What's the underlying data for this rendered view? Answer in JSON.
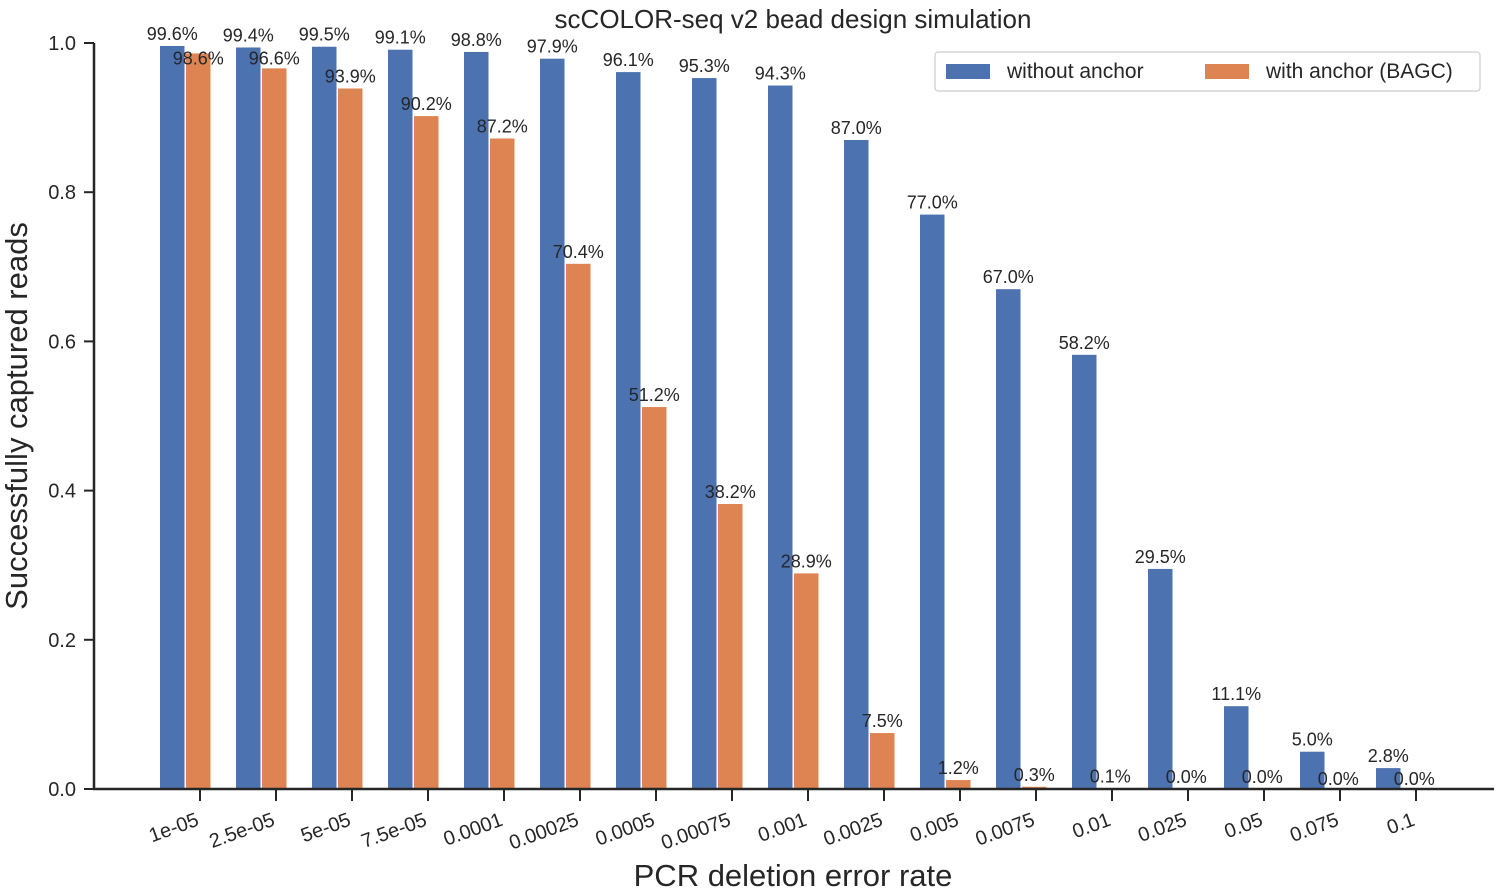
{
  "chart_data": {
    "type": "bar",
    "title": "scCOLOR-seq v2 bead design simulation",
    "xlabel": "PCR deletion error rate",
    "ylabel": "Successfully captured reads",
    "ylim": [
      0,
      1.0
    ],
    "yticks": [
      "0.0",
      "0.2",
      "0.4",
      "0.6",
      "0.8",
      "1.0"
    ],
    "categories": [
      "1e-05",
      "2.5e-05",
      "5e-05",
      "7.5e-05",
      "0.0001",
      "0.00025",
      "0.0005",
      "0.00075",
      "0.001",
      "0.0025",
      "0.005",
      "0.0075",
      "0.01",
      "0.025",
      "0.05",
      "0.075",
      "0.1"
    ],
    "legend_position": "top-right",
    "series": [
      {
        "name": "without anchor",
        "color": "#4c72b0",
        "values": [
          0.996,
          0.994,
          0.995,
          0.991,
          0.988,
          0.979,
          0.961,
          0.953,
          0.943,
          0.87,
          0.77,
          0.67,
          0.582,
          0.295,
          0.111,
          0.05,
          0.028
        ],
        "labels": [
          "99.6%",
          "99.4%",
          "99.5%",
          "99.1%",
          "98.8%",
          "97.9%",
          "96.1%",
          "95.3%",
          "94.3%",
          "87.0%",
          "77.0%",
          "67.0%",
          "58.2%",
          "29.5%",
          "11.1%",
          "5.0%",
          "2.8%"
        ]
      },
      {
        "name": "with anchor (BAGC)",
        "color": "#dd8452",
        "values": [
          0.986,
          0.966,
          0.939,
          0.902,
          0.872,
          0.704,
          0.512,
          0.382,
          0.289,
          0.075,
          0.012,
          0.003,
          0.001,
          0.0,
          0.0,
          0.0,
          0.0
        ],
        "labels": [
          "98.6%",
          "96.6%",
          "93.9%",
          "90.2%",
          "87.2%",
          "70.4%",
          "51.2%",
          "38.2%",
          "28.9%",
          "7.5%",
          "1.2%",
          "0.3%",
          "0.1%",
          "0.0%",
          "0.0%",
          "0.0%",
          "0.0%"
        ]
      }
    ]
  }
}
